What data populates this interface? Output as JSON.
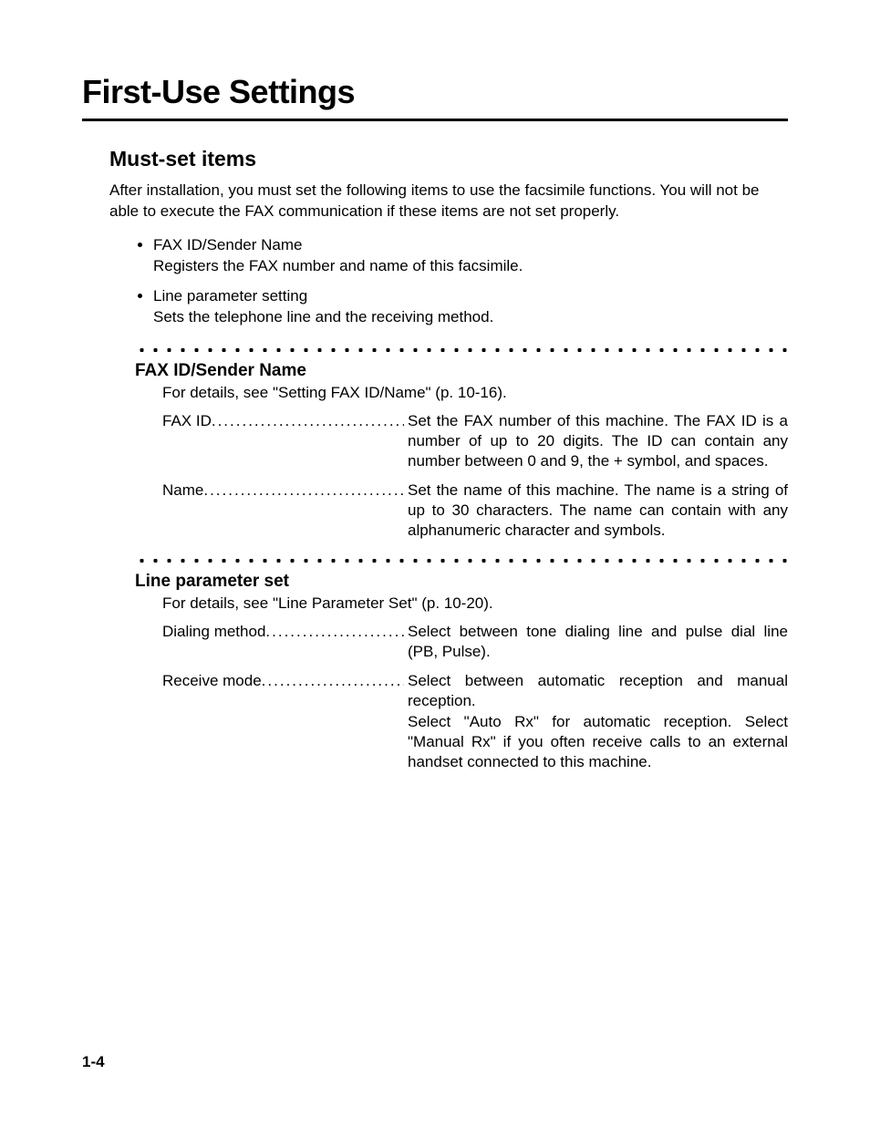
{
  "page": {
    "title": "First-Use Settings",
    "page_number": "1-4",
    "colors": {
      "text": "#000000",
      "background": "#ffffff",
      "rule": "#000000"
    },
    "typography": {
      "title_fontsize": 36,
      "h2_fontsize": 23,
      "h3_fontsize": 19,
      "body_fontsize": 17
    }
  },
  "section": {
    "heading": "Must-set items",
    "intro": "After installation, you must set the following items to use the facsimile functions. You will not be able to execute the FAX communication if these items are not set properly.",
    "bullets": [
      {
        "label": "FAX ID/Sender Name",
        "desc": "Registers the FAX number and name of this facsimile."
      },
      {
        "label": "Line parameter setting",
        "desc": "Sets the telephone line and the receiving method."
      }
    ]
  },
  "fax_id": {
    "heading": "FAX ID/Sender Name",
    "note": "For details, see \"Setting FAX ID/Name\" (p. 10-16).",
    "rows": [
      {
        "label": "FAX ID",
        "desc": "Set the FAX number of this machine. The FAX ID is a number of up to 20 digits. The ID can contain any number between 0 and 9, the + symbol, and spaces."
      },
      {
        "label": "Name",
        "desc": "Set the name of this machine. The name is a string of up to 30 characters. The name can contain with any alphanumeric character and symbols."
      }
    ]
  },
  "line_param": {
    "heading": "Line parameter set",
    "note": "For details, see \"Line Parameter Set\" (p. 10-20).",
    "rows": [
      {
        "label": "Dialing method",
        "desc": "Select between tone dialing line and pulse dial line (PB, Pulse)."
      },
      {
        "label": "Receive mode",
        "desc": "Select between automatic reception and manual reception.\nSelect \"Auto Rx\" for automatic reception. Select \"Manual Rx\" if you often receive calls to an external handset connected to this machine."
      }
    ]
  }
}
